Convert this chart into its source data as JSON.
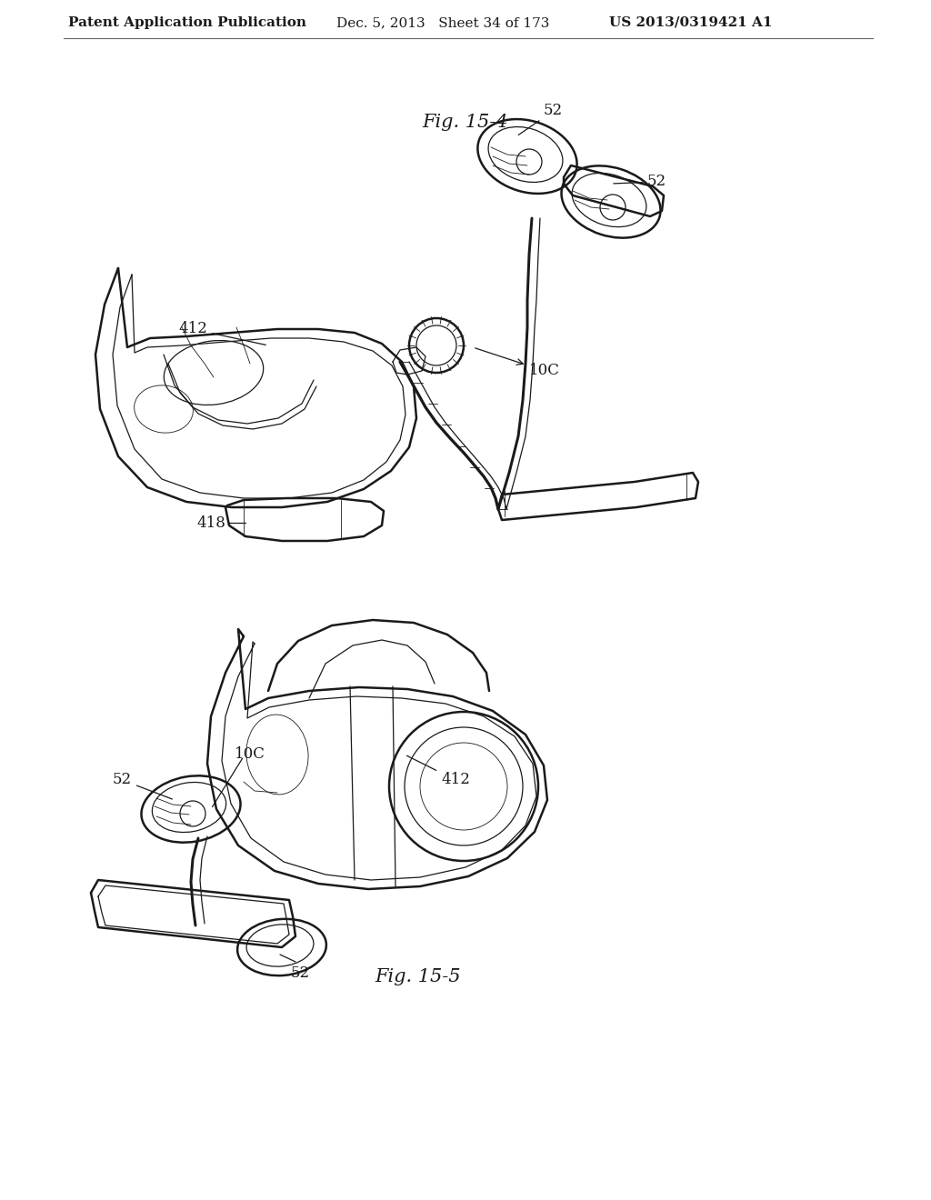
{
  "header_left": "Patent Application Publication",
  "header_mid": "Dec. 5, 2013   Sheet 34 of 173",
  "header_right": "US 2013/0319421 A1",
  "fig1_label": "Fig. 15-4",
  "fig2_label": "Fig. 15-5",
  "background_color": "#ffffff",
  "text_color": "#1a1a1a",
  "line_color": "#1a1a1a",
  "header_fontsize": 11,
  "fig_label_fontsize": 15,
  "annotation_fontsize": 12
}
